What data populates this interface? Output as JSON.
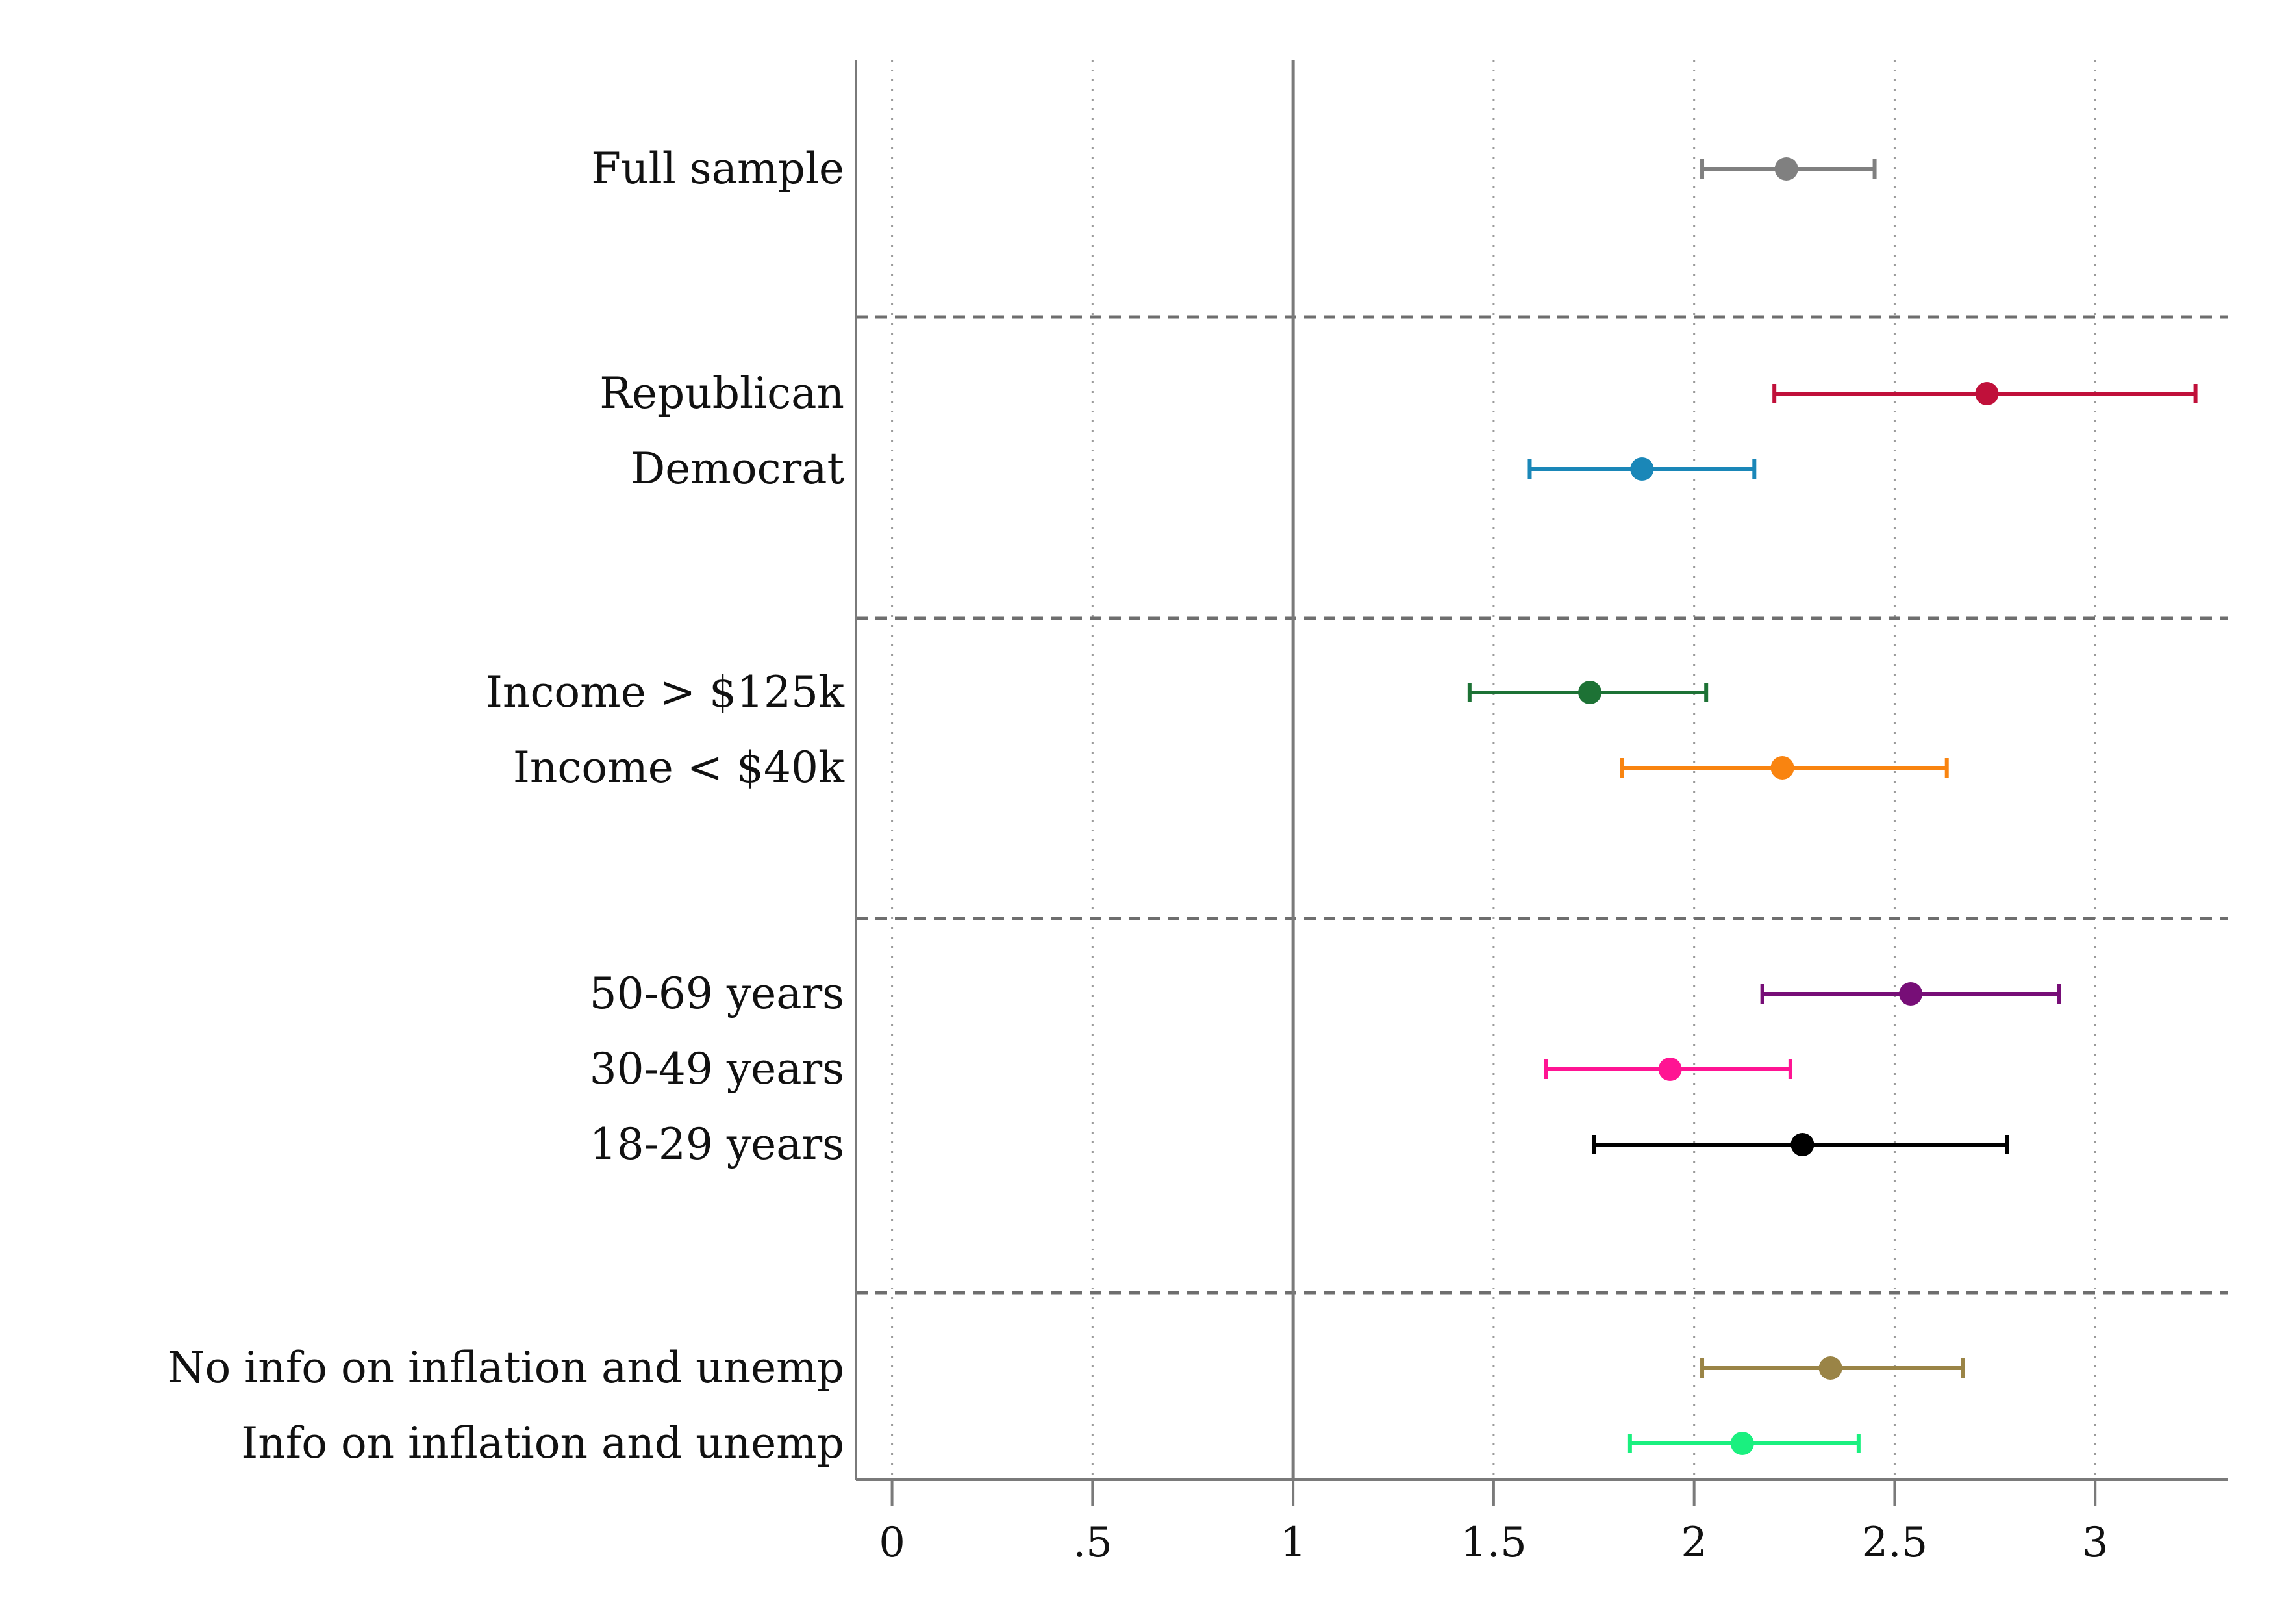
{
  "chart_data": {
    "type": "scatter",
    "subtype": "coefficient-plot",
    "title": "",
    "xlabel": "",
    "ylabel": "",
    "xlim": [
      -0.09,
      3.33
    ],
    "reference_line": 1,
    "grid": "vertical dotted",
    "legend": "none",
    "x_ticks": [
      {
        "value": 0,
        "label": "0"
      },
      {
        "value": 0.5,
        "label": ".5"
      },
      {
        "value": 1,
        "label": "1"
      },
      {
        "value": 1.5,
        "label": "1.5"
      },
      {
        "value": 2,
        "label": "2"
      },
      {
        "value": 2.5,
        "label": "2.5"
      },
      {
        "value": 3,
        "label": "3"
      }
    ],
    "groups": [
      {
        "rows": [
          {
            "label": "Full sample",
            "estimate": 2.23,
            "ci": [
              2.02,
              2.45
            ],
            "color": "#808080"
          }
        ]
      },
      {
        "rows": [
          {
            "label": "Republican",
            "estimate": 2.73,
            "ci": [
              2.2,
              3.25
            ],
            "color": "#c0103a"
          },
          {
            "label": "Democrat",
            "estimate": 1.87,
            "ci": [
              1.59,
              2.15
            ],
            "color": "#1a87b8"
          }
        ]
      },
      {
        "rows": [
          {
            "label": "Income > $125k",
            "estimate": 1.74,
            "ci": [
              1.44,
              2.03
            ],
            "color": "#1d7235"
          },
          {
            "label": "Income < $40k",
            "estimate": 2.22,
            "ci": [
              1.82,
              2.63
            ],
            "color": "#f98410"
          }
        ]
      },
      {
        "rows": [
          {
            "label": "50-69 years",
            "estimate": 2.54,
            "ci": [
              2.17,
              2.91
            ],
            "color": "#770e77"
          },
          {
            "label": "30-49 years",
            "estimate": 1.94,
            "ci": [
              1.63,
              2.24
            ],
            "color": "#ff1493"
          },
          {
            "label": "18-29 years",
            "estimate": 2.27,
            "ci": [
              1.75,
              2.78
            ],
            "color": "#000000"
          }
        ]
      },
      {
        "rows": [
          {
            "label": "No info on inflation and unemp",
            "estimate": 2.34,
            "ci": [
              2.02,
              2.67
            ],
            "color": "#9a8446"
          },
          {
            "label": "Info on inflation and unemp",
            "estimate": 2.12,
            "ci": [
              1.84,
              2.41
            ],
            "color": "#1af07f"
          }
        ]
      }
    ]
  }
}
